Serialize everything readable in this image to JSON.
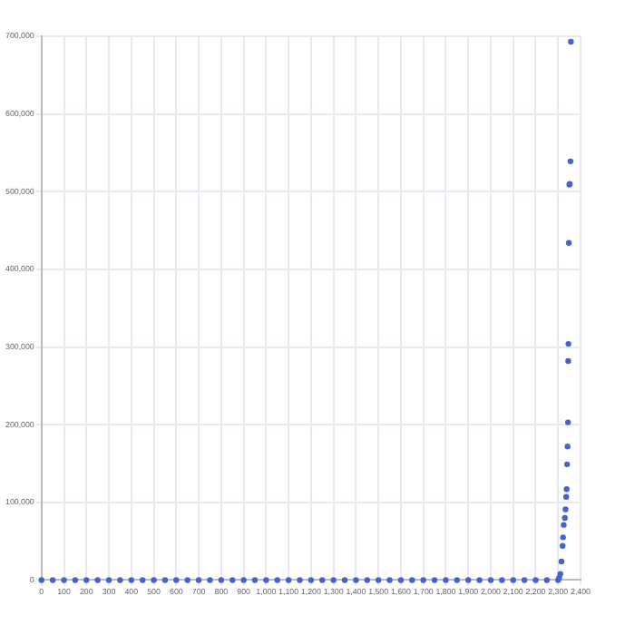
{
  "chart_data": {
    "type": "scatter",
    "color": "#4463d0",
    "marker": "circle",
    "grid": true,
    "x": [
      0,
      50,
      100,
      150,
      200,
      250,
      300,
      350,
      400,
      450,
      500,
      550,
      600,
      650,
      700,
      750,
      800,
      850,
      900,
      950,
      1000,
      1050,
      1100,
      1150,
      1200,
      1250,
      1300,
      1350,
      1400,
      1450,
      1500,
      1550,
      1600,
      1650,
      1700,
      1750,
      1800,
      1850,
      1900,
      1950,
      2000,
      2050,
      2100,
      2150,
      2200,
      2250,
      2300,
      2305,
      2310,
      2315,
      2320,
      2322,
      2325,
      2330,
      2333,
      2336,
      2338,
      2340,
      2342,
      2344,
      2345,
      2346,
      2348,
      2350,
      2352,
      2355,
      2357
    ],
    "values": [
      0,
      0,
      0,
      0,
      0,
      0,
      0,
      0,
      0,
      0,
      0,
      0,
      0,
      0,
      0,
      0,
      0,
      0,
      0,
      0,
      0,
      0,
      0,
      0,
      0,
      0,
      0,
      0,
      0,
      0,
      0,
      0,
      0,
      0,
      0,
      0,
      0,
      0,
      0,
      0,
      0,
      0,
      0,
      0,
      0,
      0,
      0,
      3000,
      8000,
      24000,
      44000,
      55000,
      71000,
      80000,
      91000,
      107000,
      117000,
      149000,
      172000,
      203000,
      282000,
      304000,
      434000,
      509000,
      510000,
      539000,
      693000
    ],
    "xlim": [
      0,
      2400
    ],
    "xticks": [
      {
        "value": 0,
        "label": "0"
      },
      {
        "value": 100,
        "label": "100"
      },
      {
        "value": 200,
        "label": "200"
      },
      {
        "value": 300,
        "label": "300"
      },
      {
        "value": 400,
        "label": "400"
      },
      {
        "value": 500,
        "label": "500"
      },
      {
        "value": 600,
        "label": "600"
      },
      {
        "value": 700,
        "label": "700"
      },
      {
        "value": 800,
        "label": "800"
      },
      {
        "value": 900,
        "label": "900"
      },
      {
        "value": 1000,
        "label": "1,000"
      },
      {
        "value": 1100,
        "label": "1,100"
      },
      {
        "value": 1200,
        "label": "1,200"
      },
      {
        "value": 1300,
        "label": "1,300"
      },
      {
        "value": 1400,
        "label": "1,400"
      },
      {
        "value": 1500,
        "label": "1,500"
      },
      {
        "value": 1600,
        "label": "1,600"
      },
      {
        "value": 1700,
        "label": "1,700"
      },
      {
        "value": 1800,
        "label": "1,800"
      },
      {
        "value": 1900,
        "label": "1,900"
      },
      {
        "value": 2000,
        "label": "2,000"
      },
      {
        "value": 2100,
        "label": "2,100"
      },
      {
        "value": 2200,
        "label": "2,200"
      },
      {
        "value": 2300,
        "label": "2,300"
      },
      {
        "value": 2400,
        "label": "2,400"
      }
    ],
    "ylim": [
      0,
      700000
    ],
    "yticks": [
      {
        "value": 0,
        "label": "0"
      },
      {
        "value": 100000,
        "label": "100,000"
      },
      {
        "value": 200000,
        "label": "200,000"
      },
      {
        "value": 300000,
        "label": "300,000"
      },
      {
        "value": 400000,
        "label": "400,000"
      },
      {
        "value": 500000,
        "label": "500,000"
      },
      {
        "value": 600000,
        "label": "600,000"
      },
      {
        "value": 700000,
        "label": "700,000"
      }
    ]
  }
}
